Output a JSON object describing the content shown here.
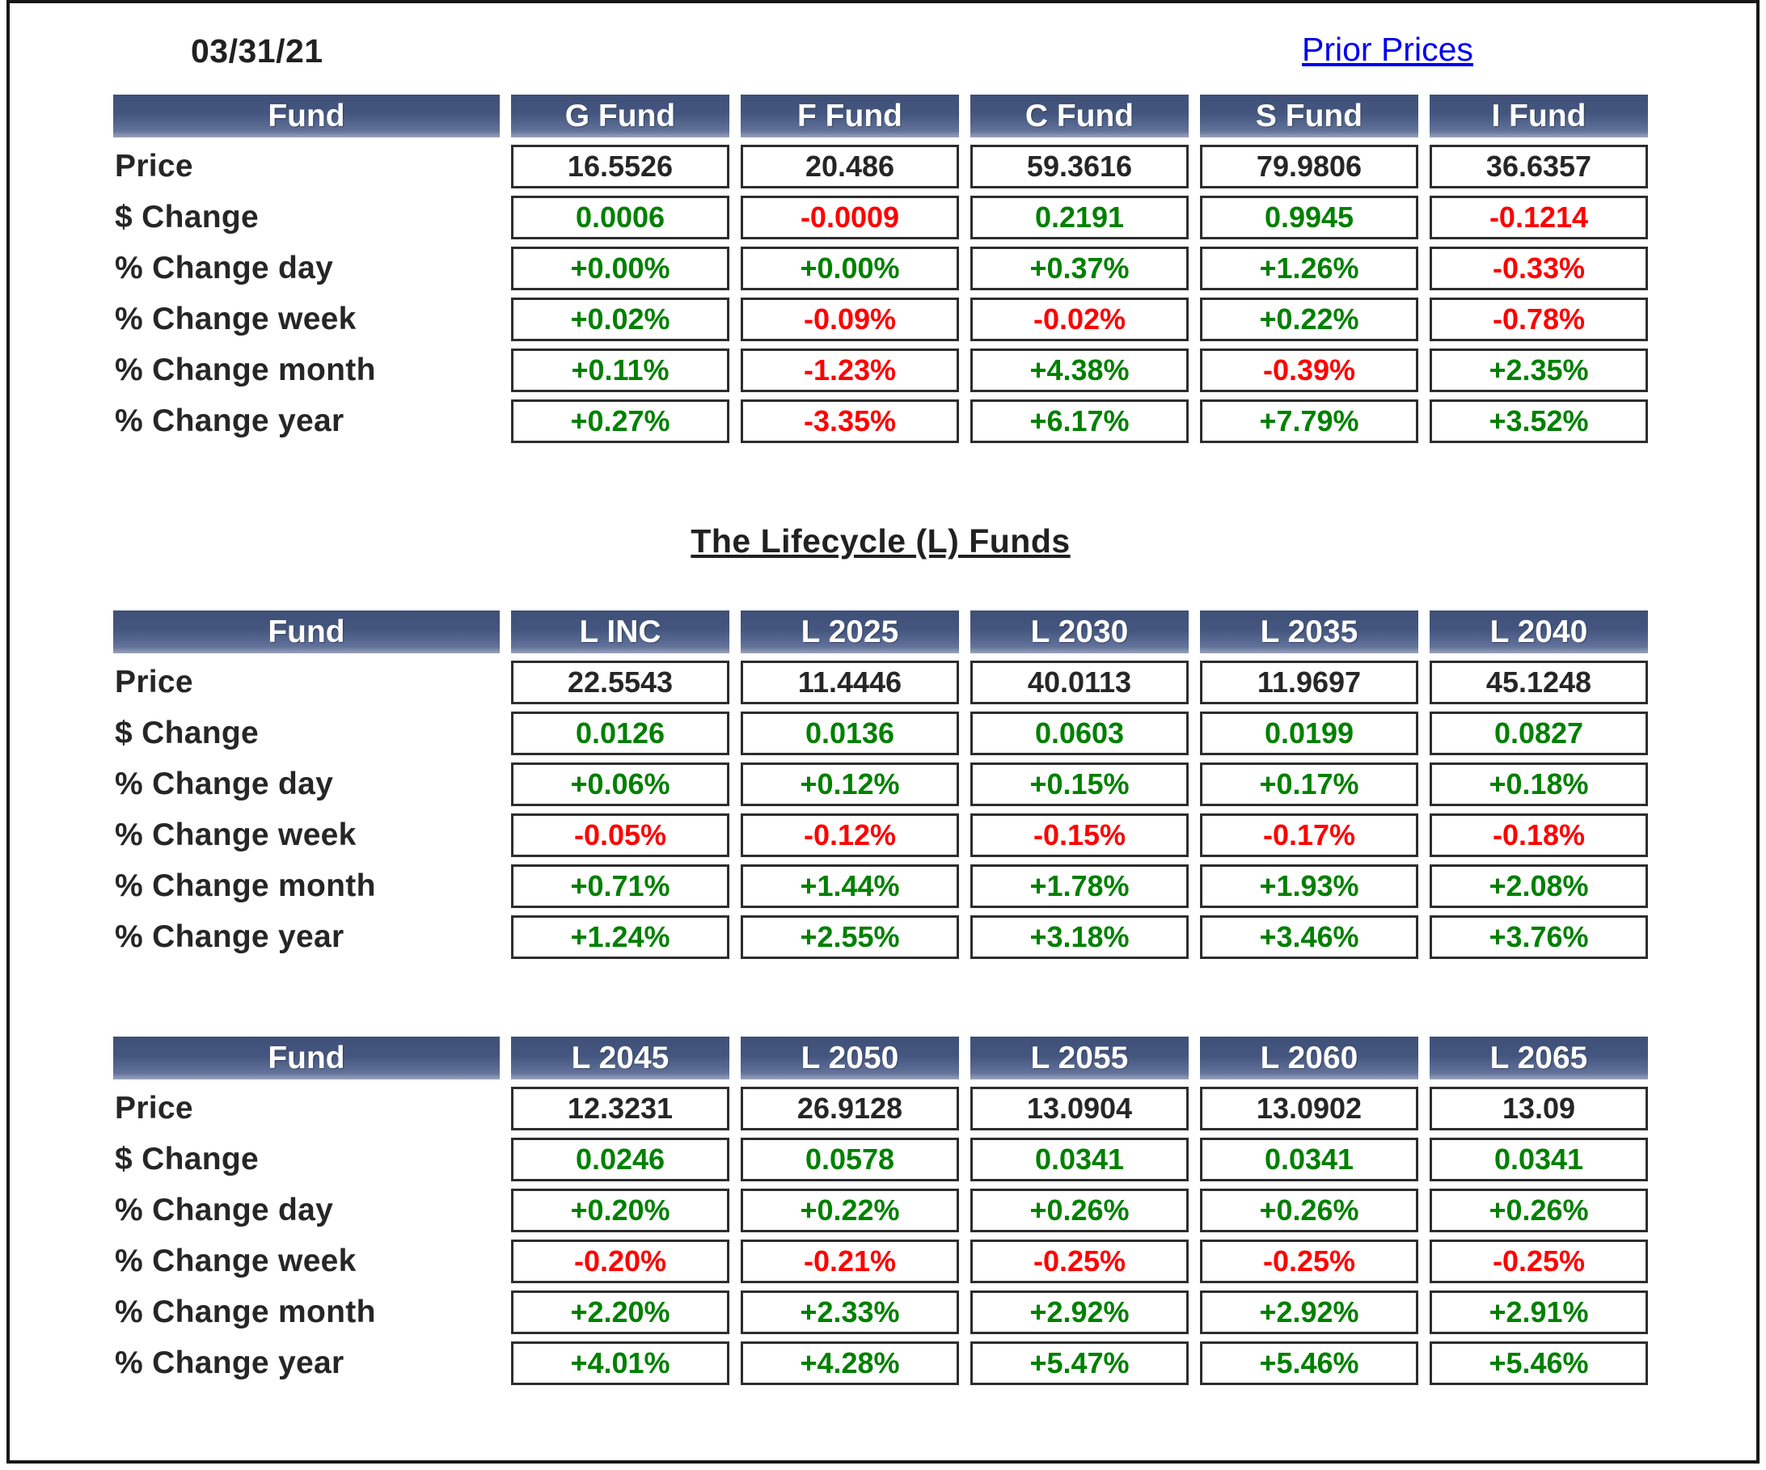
{
  "header": {
    "date": "03/31/21",
    "prior_prices_link": "Prior Prices"
  },
  "section_title": "The Lifecycle (L) Funds",
  "corner_label": "Fund",
  "row_labels": [
    "Price",
    "$ Change",
    "% Change day",
    "% Change week",
    "% Change month",
    "% Change year"
  ],
  "colors": {
    "positive": "#008000",
    "negative": "#ff0000",
    "price_text": "#262626",
    "link": "#0000ee",
    "header_gradient_top": "#3f5078",
    "header_gradient_bottom": "#9aa4bb",
    "cell_border": "#2d2d2d"
  },
  "tables": [
    {
      "name": "main-funds",
      "corner_label": "Fund",
      "funds": [
        "G Fund",
        "F Fund",
        "C Fund",
        "S Fund",
        "I Fund"
      ],
      "rows": [
        {
          "label": "Price",
          "type": "price",
          "values": [
            "16.5526",
            "20.486",
            "59.3616",
            "79.9806",
            "36.6357"
          ]
        },
        {
          "label": "$ Change",
          "type": "change",
          "values": [
            "0.0006",
            "-0.0009",
            "0.2191",
            "0.9945",
            "-0.1214"
          ]
        },
        {
          "label": "% Change day",
          "type": "change",
          "values": [
            "+0.00%",
            "+0.00%",
            "+0.37%",
            "+1.26%",
            "-0.33%"
          ]
        },
        {
          "label": "% Change week",
          "type": "change",
          "values": [
            "+0.02%",
            "-0.09%",
            "-0.02%",
            "+0.22%",
            "-0.78%"
          ]
        },
        {
          "label": "% Change month",
          "type": "change",
          "values": [
            "+0.11%",
            "-1.23%",
            "+4.38%",
            "-0.39%",
            "+2.35%"
          ]
        },
        {
          "label": "% Change year",
          "type": "change",
          "values": [
            "+0.27%",
            "-3.35%",
            "+6.17%",
            "+7.79%",
            "+3.52%"
          ]
        }
      ]
    },
    {
      "name": "lifecycle-funds-1",
      "corner_label": "Fund",
      "funds": [
        "L INC",
        "L 2025",
        "L 2030",
        "L 2035",
        "L 2040"
      ],
      "rows": [
        {
          "label": "Price",
          "type": "price",
          "values": [
            "22.5543",
            "11.4446",
            "40.0113",
            "11.9697",
            "45.1248"
          ]
        },
        {
          "label": "$ Change",
          "type": "change",
          "values": [
            "0.0126",
            "0.0136",
            "0.0603",
            "0.0199",
            "0.0827"
          ]
        },
        {
          "label": "% Change day",
          "type": "change",
          "values": [
            "+0.06%",
            "+0.12%",
            "+0.15%",
            "+0.17%",
            "+0.18%"
          ]
        },
        {
          "label": "% Change week",
          "type": "change",
          "values": [
            "-0.05%",
            "-0.12%",
            "-0.15%",
            "-0.17%",
            "-0.18%"
          ]
        },
        {
          "label": "% Change month",
          "type": "change",
          "values": [
            "+0.71%",
            "+1.44%",
            "+1.78%",
            "+1.93%",
            "+2.08%"
          ]
        },
        {
          "label": "% Change year",
          "type": "change",
          "values": [
            "+1.24%",
            "+2.55%",
            "+3.18%",
            "+3.46%",
            "+3.76%"
          ]
        }
      ]
    },
    {
      "name": "lifecycle-funds-2",
      "corner_label": "Fund",
      "funds": [
        "L 2045",
        "L 2050",
        "L 2055",
        "L 2060",
        "L 2065"
      ],
      "rows": [
        {
          "label": "Price",
          "type": "price",
          "values": [
            "12.3231",
            "26.9128",
            "13.0904",
            "13.0902",
            "13.09"
          ]
        },
        {
          "label": "$ Change",
          "type": "change",
          "values": [
            "0.0246",
            "0.0578",
            "0.0341",
            "0.0341",
            "0.0341"
          ]
        },
        {
          "label": "% Change day",
          "type": "change",
          "values": [
            "+0.20%",
            "+0.22%",
            "+0.26%",
            "+0.26%",
            "+0.26%"
          ]
        },
        {
          "label": "% Change week",
          "type": "change",
          "values": [
            "-0.20%",
            "-0.21%",
            "-0.25%",
            "-0.25%",
            "-0.25%"
          ]
        },
        {
          "label": "% Change month",
          "type": "change",
          "values": [
            "+2.20%",
            "+2.33%",
            "+2.92%",
            "+2.92%",
            "+2.91%"
          ]
        },
        {
          "label": "% Change year",
          "type": "change",
          "values": [
            "+4.01%",
            "+4.28%",
            "+5.47%",
            "+5.46%",
            "+5.46%"
          ]
        }
      ]
    }
  ]
}
